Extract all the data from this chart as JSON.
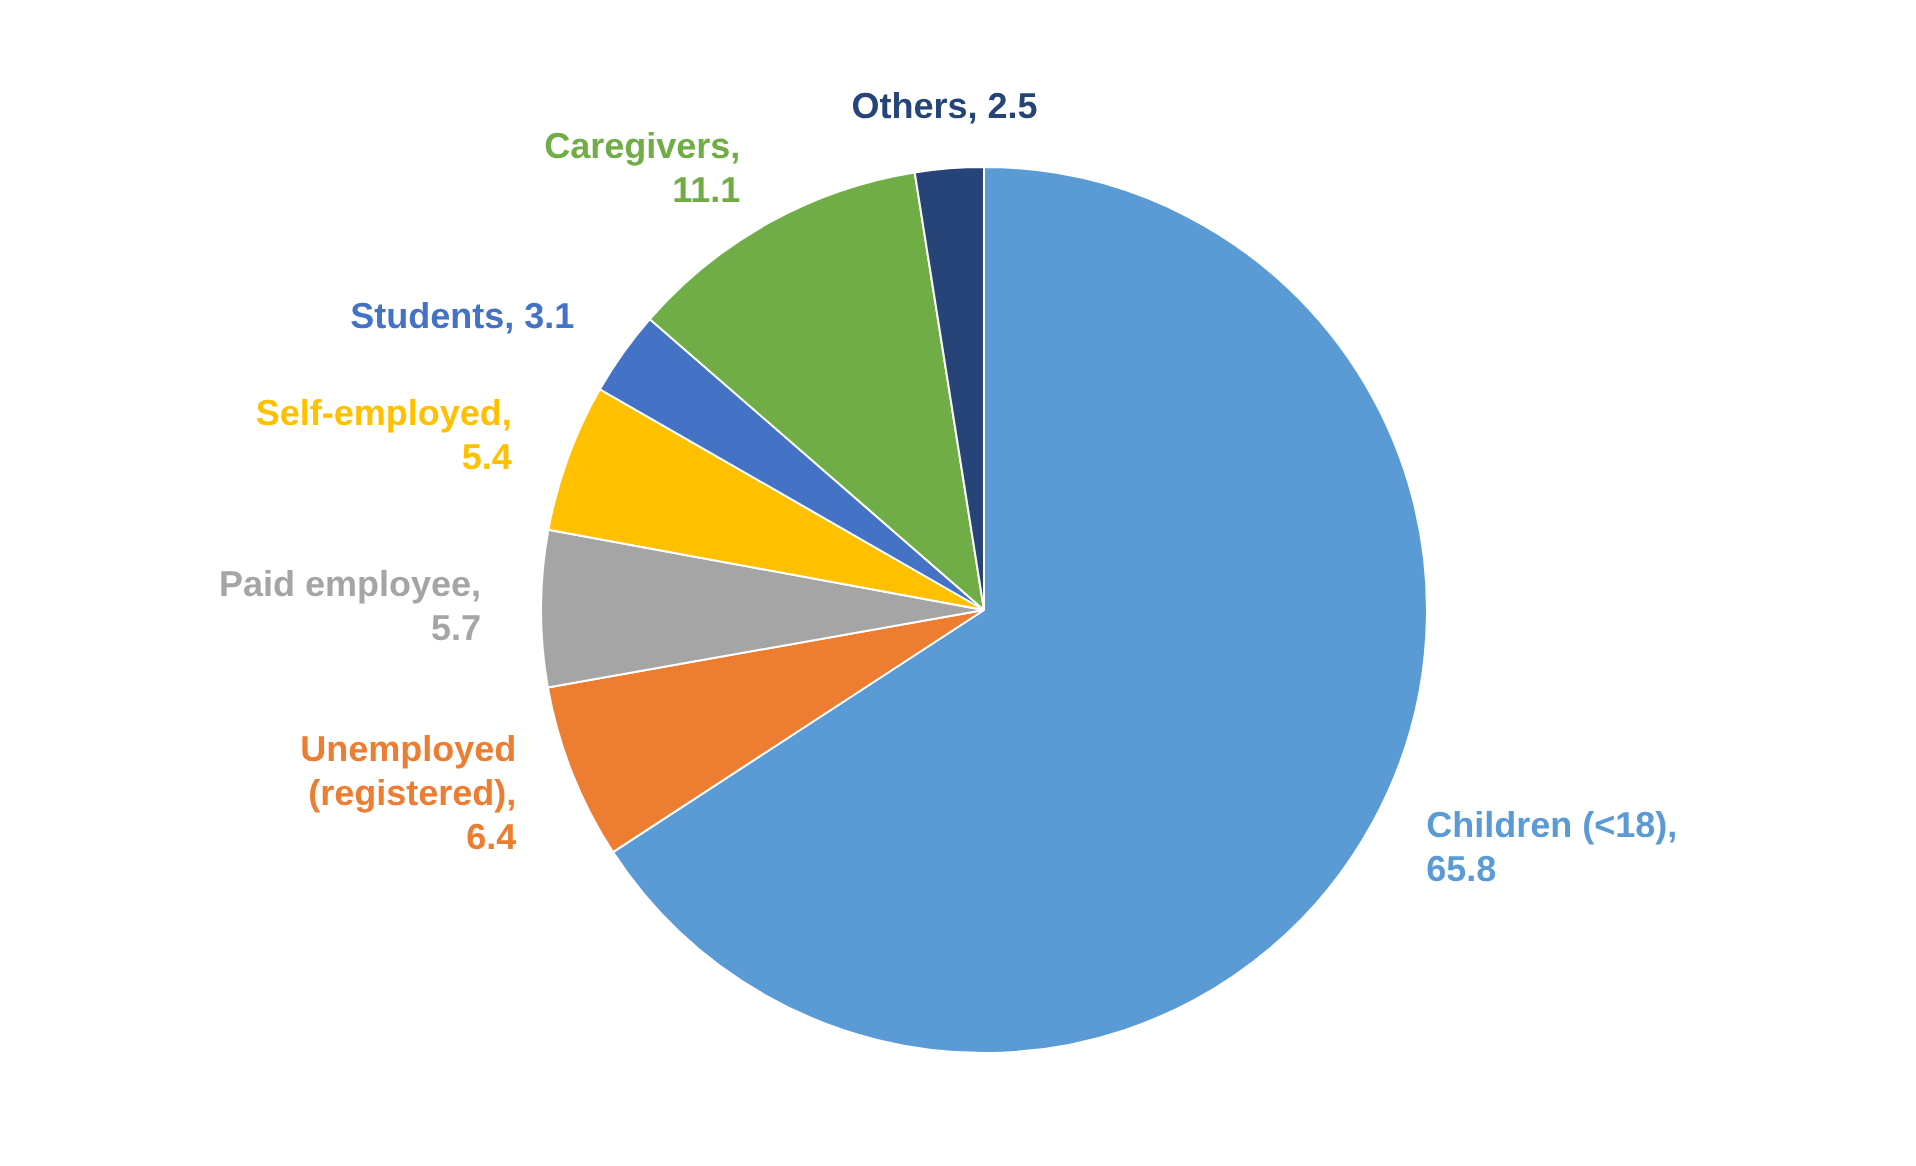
{
  "chart_data": {
    "type": "pie",
    "categories": [
      "Children (<18)",
      "Unemployed (registered)",
      "Paid employee",
      "Self-employed",
      "Students",
      "Caregivers",
      "Others"
    ],
    "values": [
      65.8,
      6.4,
      5.7,
      5.4,
      3.1,
      11.1,
      2.5
    ],
    "colors": [
      "#5b9bd5",
      "#ed7d31",
      "#a5a5a5",
      "#ffc000",
      "#4472c4",
      "#70ad47",
      "#264478"
    ],
    "value_labels": [
      ", 65.8",
      ", 6.4",
      ", 5.7",
      ", 5.4",
      ", 3.1",
      ", 11.1",
      ", 2.5"
    ],
    "legend": false
  }
}
